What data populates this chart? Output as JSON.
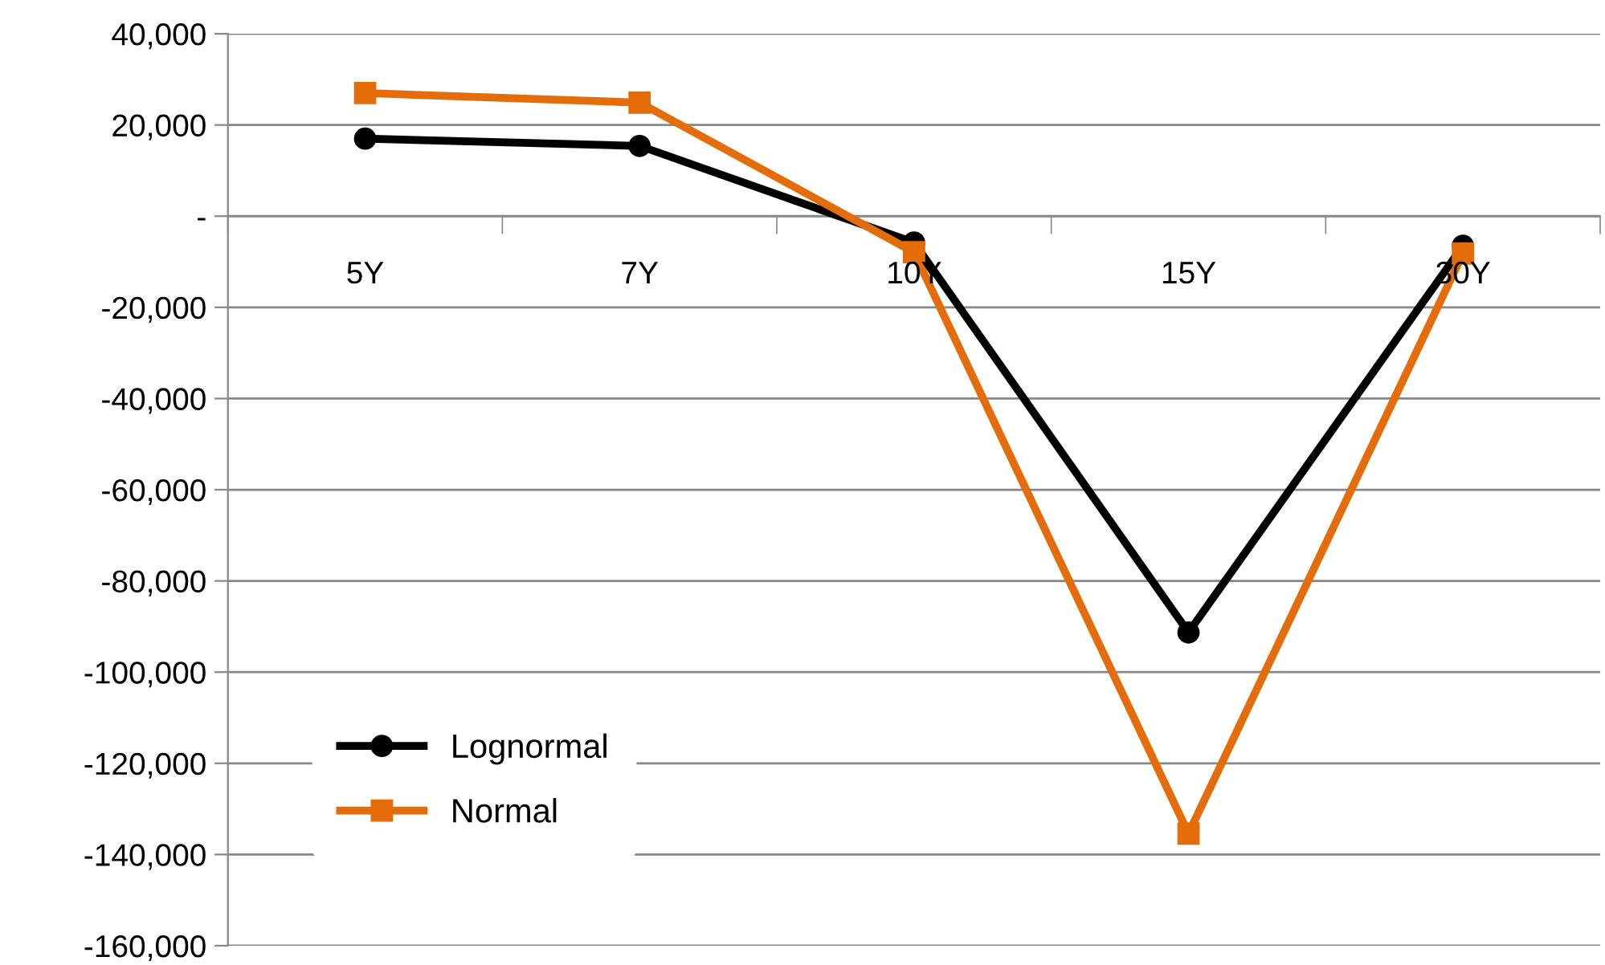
{
  "chart_data": {
    "type": "line",
    "categories": [
      "5Y",
      "7Y",
      "10Y",
      "15Y",
      "30Y"
    ],
    "series": [
      {
        "name": "Lognormal",
        "color": "#000000",
        "marker": "circle",
        "values": [
          17000,
          15400,
          -5800,
          -91300,
          -6500
        ]
      },
      {
        "name": "Normal",
        "color": "#e46c0a",
        "marker": "square",
        "values": [
          27000,
          24900,
          -7900,
          -135400,
          -8200
        ]
      }
    ],
    "ylim": [
      -160000,
      40000
    ],
    "yticks": [
      {
        "value": -160000,
        "label": "-160,000"
      },
      {
        "value": -140000,
        "label": "-140,000"
      },
      {
        "value": -120000,
        "label": "-120,000"
      },
      {
        "value": -100000,
        "label": "-100,000"
      },
      {
        "value": -80000,
        "label": "-80,000"
      },
      {
        "value": -60000,
        "label": "-60,000"
      },
      {
        "value": -40000,
        "label": "-40,000"
      },
      {
        "value": -20000,
        "label": "-20,000"
      },
      {
        "value": 0,
        "label": "-"
      },
      {
        "value": 20000,
        "label": "20,000"
      },
      {
        "value": 40000,
        "label": "40,000"
      }
    ],
    "grid": "y",
    "legend": "bottom left",
    "line_style": "solid"
  }
}
